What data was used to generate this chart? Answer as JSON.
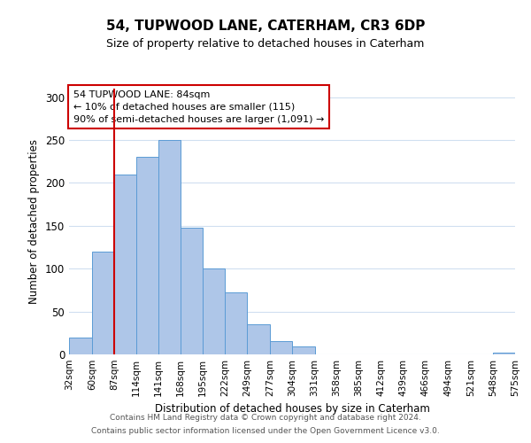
{
  "title": "54, TUPWOOD LANE, CATERHAM, CR3 6DP",
  "subtitle": "Size of property relative to detached houses in Caterham",
  "xlabel": "Distribution of detached houses by size in Caterham",
  "ylabel": "Number of detached properties",
  "bin_edges": [
    32,
    60,
    87,
    114,
    141,
    168,
    195,
    222,
    249,
    277,
    304,
    331,
    358,
    385,
    412,
    439,
    466,
    494,
    521,
    548,
    575
  ],
  "bar_heights": [
    20,
    120,
    210,
    230,
    250,
    148,
    100,
    72,
    35,
    16,
    9,
    0,
    0,
    0,
    0,
    0,
    0,
    0,
    0,
    2
  ],
  "bar_color": "#aec6e8",
  "bar_edge_color": "#5b9bd5",
  "vline_x": 87,
  "vline_color": "#cc0000",
  "ylim": [
    0,
    310
  ],
  "yticks": [
    0,
    50,
    100,
    150,
    200,
    250,
    300
  ],
  "annotation_title": "54 TUPWOOD LANE: 84sqm",
  "annotation_line2": "← 10% of detached houses are smaller (115)",
  "annotation_line3": "90% of semi-detached houses are larger (1,091) →",
  "annotation_box_color": "#ffffff",
  "annotation_box_edge": "#cc0000",
  "footnote1": "Contains HM Land Registry data © Crown copyright and database right 2024.",
  "footnote2": "Contains public sector information licensed under the Open Government Licence v3.0.",
  "background_color": "#ffffff",
  "grid_color": "#d0dff0"
}
